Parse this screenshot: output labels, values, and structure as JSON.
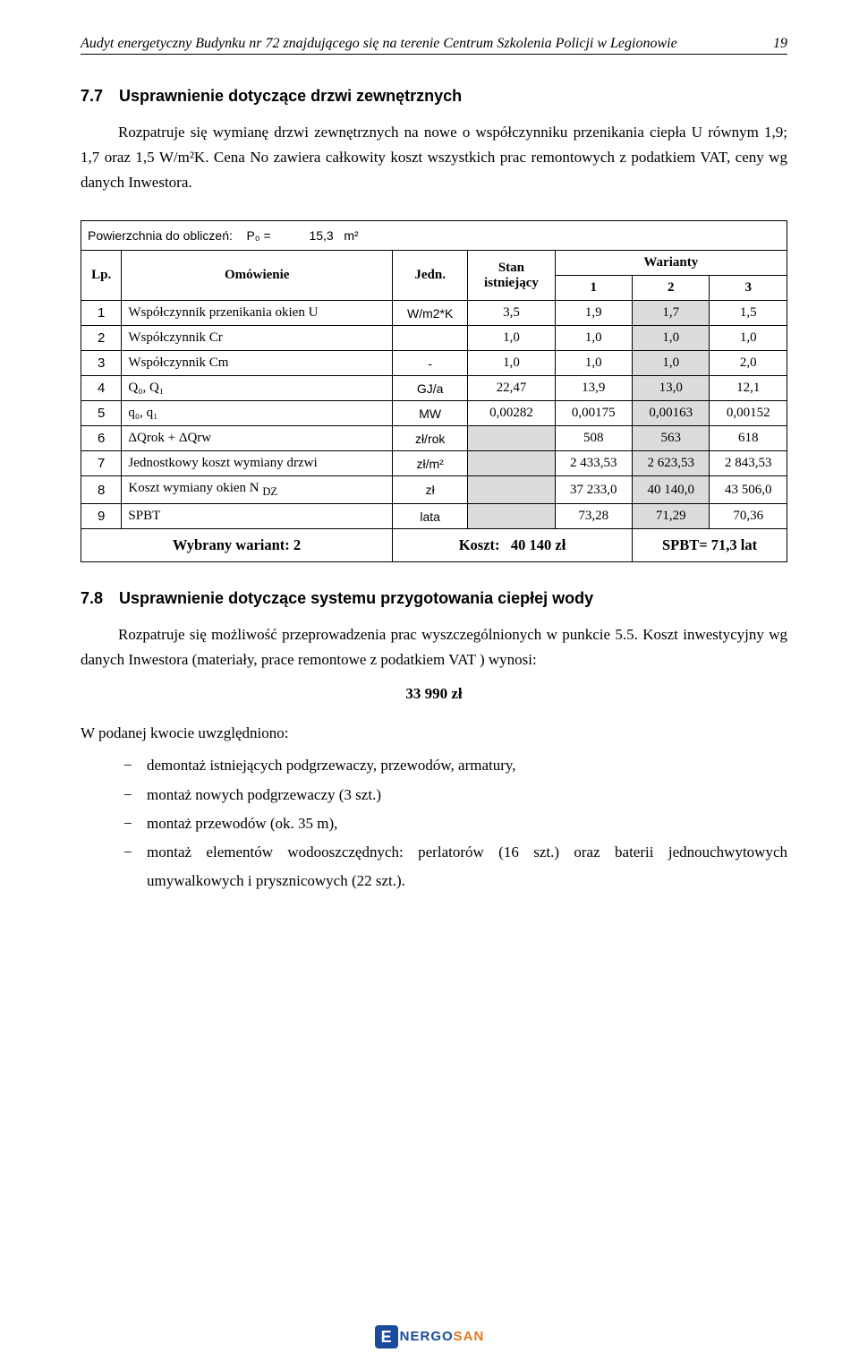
{
  "header": {
    "title": "Audyt energetyczny Budynku nr 72 znajdującego się na terenie Centrum Szkolenia Policji w Legionowie",
    "page_num": "19"
  },
  "sec77": {
    "num": "7.7",
    "title": "Usprawnienie dotyczące drzwi zewnętrznych",
    "para": "Rozpatruje się wymianę drzwi zewnętrznych na nowe o współczynniku przenikania ciepła U równym 1,9; 1,7 oraz 1,5 W/m²K. Cena No zawiera całkowity koszt wszystkich prac remontowych z podatkiem VAT, ceny wg danych Inwestora."
  },
  "table": {
    "surface_label": "Powierzchnia do obliczeń:",
    "p0_label": "P₀ =",
    "p0_value": "15,3",
    "p0_unit": "m²",
    "head_lp": "Lp.",
    "head_omow": "Omówienie",
    "head_jedn": "Jedn.",
    "head_stan": "Stan istniejący",
    "head_war": "Warianty",
    "war1": "1",
    "war2": "2",
    "war3": "3",
    "rows": [
      {
        "lp": "1",
        "desc": "Współczynnik przenikania okien U",
        "unit": "W/m2*K",
        "stan": "3,5",
        "v1": "1,9",
        "v2": "1,7",
        "v3": "1,5",
        "hl": "v2"
      },
      {
        "lp": "2",
        "desc": "Współczynnik Cr",
        "unit": "",
        "stan": "1,0",
        "v1": "1,0",
        "v2": "1,0",
        "v3": "1,0",
        "hl": "v2"
      },
      {
        "lp": "3",
        "desc": "Współczynnik Cm",
        "unit": "-",
        "stan": "1,0",
        "v1": "1,0",
        "v2": "1,0",
        "v3": "2,0",
        "hl": "v2"
      },
      {
        "lp": "4",
        "desc": "Q₀, Q₁",
        "unit": "GJ/a",
        "stan": "22,47",
        "v1": "13,9",
        "v2": "13,0",
        "v3": "12,1",
        "hl": "v2"
      },
      {
        "lp": "5",
        "desc": "q₀, q₁",
        "unit": "MW",
        "stan": "0,00282",
        "v1": "0,00175",
        "v2": "0,00163",
        "v3": "0,00152",
        "hl": "v2"
      },
      {
        "lp": "6",
        "desc": "ΔQrok + ΔQrw",
        "unit": "zł/rok",
        "stan": "",
        "v1": "508",
        "v2": "563",
        "v3": "618",
        "hl": "v2"
      },
      {
        "lp": "7",
        "desc": "Jednostkowy koszt wymiany drzwi",
        "unit": "zł/m²",
        "stan": "",
        "v1": "2 433,53",
        "v2": "2 623,53",
        "v3": "2 843,53",
        "hl": "v2"
      },
      {
        "lp": "8",
        "desc": "Koszt wymiany okien N",
        "sub": "DZ",
        "unit": "zł",
        "stan": "",
        "v1": "37 233,0",
        "v2": "40 140,0",
        "v3": "43 506,0",
        "hl": "v2"
      },
      {
        "lp": "9",
        "desc": "SPBT",
        "unit": "lata",
        "stan": "",
        "v1": "73,28",
        "v2": "71,29",
        "v3": "70,36",
        "hl": "v2"
      }
    ],
    "summary_variant": "Wybrany wariant: 2",
    "summary_cost_label": "Koszt:",
    "summary_cost_val": "40 140 zł",
    "summary_spbt": "SPBT=  71,3 lat"
  },
  "sec78": {
    "num": "7.8",
    "title": "Usprawnienie dotyczące systemu przygotowania ciepłej wody",
    "para1": "Rozpatruje się możliwość przeprowadzenia prac wyszczególnionych w punkcie 5.5. Koszt inwestycyjny wg danych Inwestora (materiały, prace remontowe z podatkiem VAT ) wynosi:",
    "amount": "33 990 zł",
    "intro": "W podanej kwocie uwzględniono:",
    "items": [
      "demontaż istniejących podgrzewaczy, przewodów, armatury,",
      "montaż nowych podgrzewaczy (3 szt.)",
      "montaż przewodów (ok. 35 m),",
      "montaż elementów wodooszczędnych: perlatorów (16 szt.) oraz baterii jednouchwytowych umywalkowych i prysznicowych (22 szt.)."
    ]
  },
  "logo": {
    "e": "E",
    "part1": "NERGO",
    "part2": "SAN"
  }
}
